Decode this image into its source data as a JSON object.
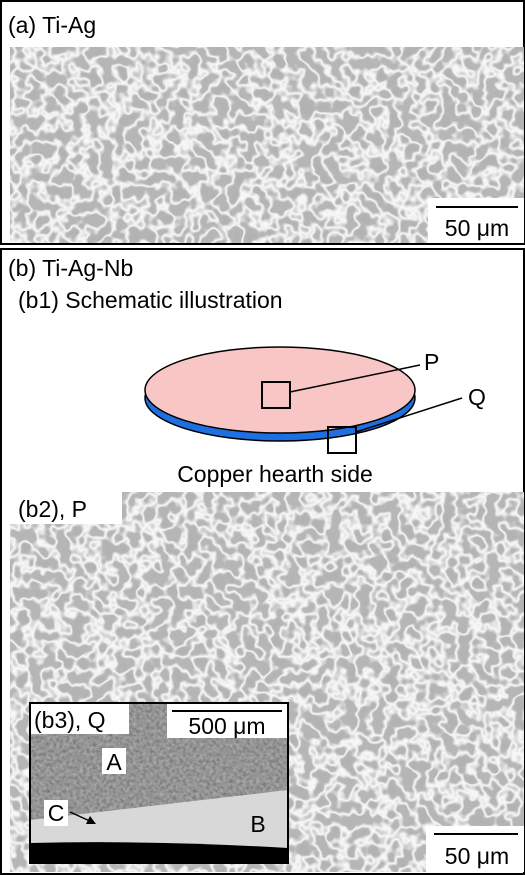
{
  "panel_a": {
    "label": "(a) Ti-Ag",
    "scale_bar": "50 μm"
  },
  "panel_b": {
    "label": "(b) Ti-Ag-Nb",
    "b1": {
      "label": "(b1) Schematic illustration",
      "point_p": "P",
      "point_q": "Q",
      "caption": "Copper hearth side"
    },
    "b2": {
      "label": "(b2), P",
      "scale_bar": "50 μm"
    },
    "b3": {
      "label": "(b3), Q",
      "scale_bar": "500 μm",
      "region_a": "A",
      "region_b": "B",
      "region_c": "C"
    }
  }
}
